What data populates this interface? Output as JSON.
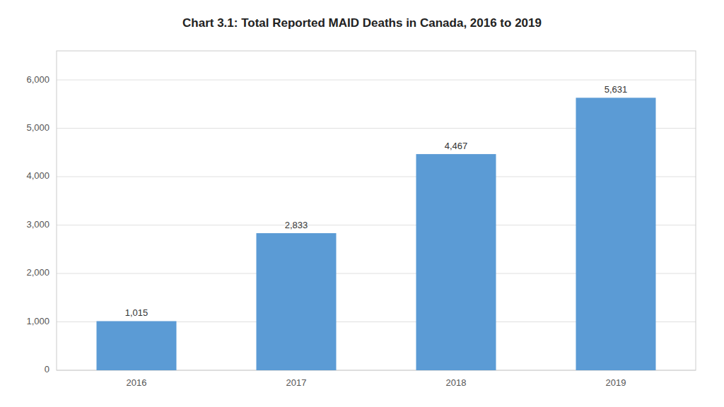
{
  "chart_data": {
    "type": "bar",
    "title": "Chart 3.1: Total Reported MAID Deaths in Canada, 2016 to 2019",
    "categories": [
      "2016",
      "2017",
      "2018",
      "2019"
    ],
    "values": [
      1015,
      2833,
      4467,
      5631
    ],
    "value_labels": [
      "1,015",
      "2,833",
      "4,467",
      "5,631"
    ],
    "data_labels": true,
    "color": "#5b9bd5",
    "ylim": [
      0,
      6600
    ],
    "yticks": [
      0,
      {
        "value": 1000,
        "label": "1,000"
      },
      {
        "value": 2000,
        "label": "2,000"
      },
      {
        "value": 3000,
        "label": "3,000"
      },
      {
        "value": 4000,
        "label": "4,000"
      },
      {
        "value": 5000,
        "label": "5,000"
      },
      {
        "value": 6000,
        "label": "6,000"
      }
    ],
    "grid": true
  }
}
